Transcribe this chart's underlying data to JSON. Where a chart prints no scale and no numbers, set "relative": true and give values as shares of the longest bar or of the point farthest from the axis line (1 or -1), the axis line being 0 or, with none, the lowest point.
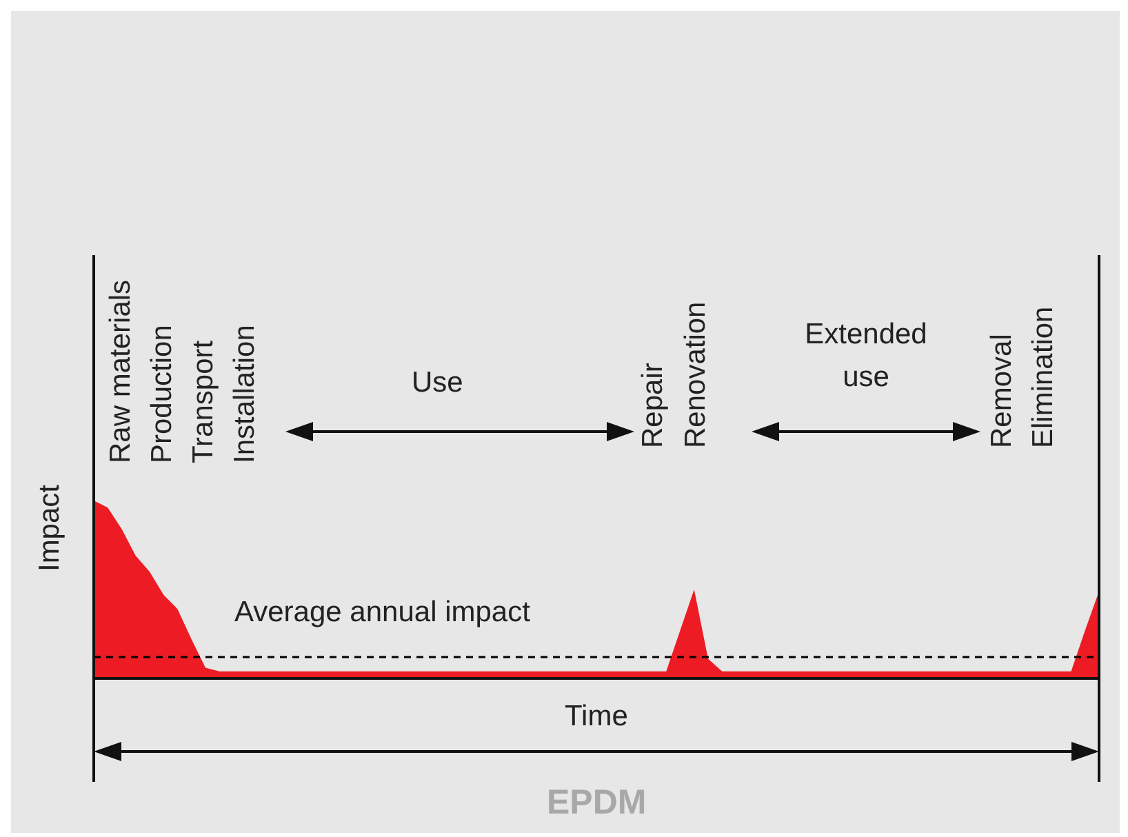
{
  "chart_data": {
    "type": "area",
    "relative": true,
    "title": "EPDM",
    "xlabel": "Time",
    "ylabel": "Impact",
    "tick_labels": false,
    "categories": [
      null,
      null,
      null,
      null,
      null,
      null,
      null,
      null,
      null,
      null,
      null,
      null,
      null,
      null,
      null,
      null,
      null,
      null,
      null,
      null,
      null,
      null,
      null,
      null,
      null,
      null,
      null,
      null,
      null,
      null,
      null,
      null,
      null,
      null,
      null,
      null,
      null,
      null,
      null,
      null,
      null,
      null,
      null,
      null,
      null,
      null,
      null,
      null,
      null,
      null,
      null,
      null,
      null,
      null,
      null,
      null,
      null,
      null,
      null,
      null,
      null,
      null,
      null,
      null,
      null,
      null,
      null,
      null,
      null,
      null,
      null,
      null,
      null
    ],
    "series": [
      {
        "color": "#ed1c24",
        "values": [
          1,
          0.96,
          0.84,
          0.69,
          0.6,
          0.47,
          0.39,
          0.22,
          0.06,
          0.04,
          0.04,
          0.04,
          0.04,
          0.04,
          0.04,
          0.04,
          0.04,
          0.04,
          0.04,
          0.04,
          0.04,
          0.04,
          0.04,
          0.04,
          0.04,
          0.04,
          0.04,
          0.04,
          0.04,
          0.04,
          0.04,
          0.04,
          0.04,
          0.04,
          0.04,
          0.04,
          0.04,
          0.04,
          0.04,
          0.04,
          0.04,
          0.04,
          0.27,
          0.5,
          0.11,
          0.04,
          0.04,
          0.04,
          0.04,
          0.04,
          0.04,
          0.04,
          0.04,
          0.04,
          0.04,
          0.04,
          0.04,
          0.04,
          0.04,
          0.04,
          0.04,
          0.04,
          0.04,
          0.04,
          0.04,
          0.04,
          0.04,
          0.04,
          0.04,
          0.04,
          0.04,
          0.27,
          0.49
        ]
      }
    ],
    "ref_lines": [
      {
        "axis": "y",
        "value": 0.12,
        "label": "Average annual impact",
        "color": "#000000",
        "line_style": "dashed"
      }
    ],
    "annotations": [
      "Raw materials",
      "Production",
      "Transport",
      "Installation",
      "Use",
      "Repair",
      "Renovation",
      "Extended use",
      "Removal",
      "Elimination"
    ]
  }
}
